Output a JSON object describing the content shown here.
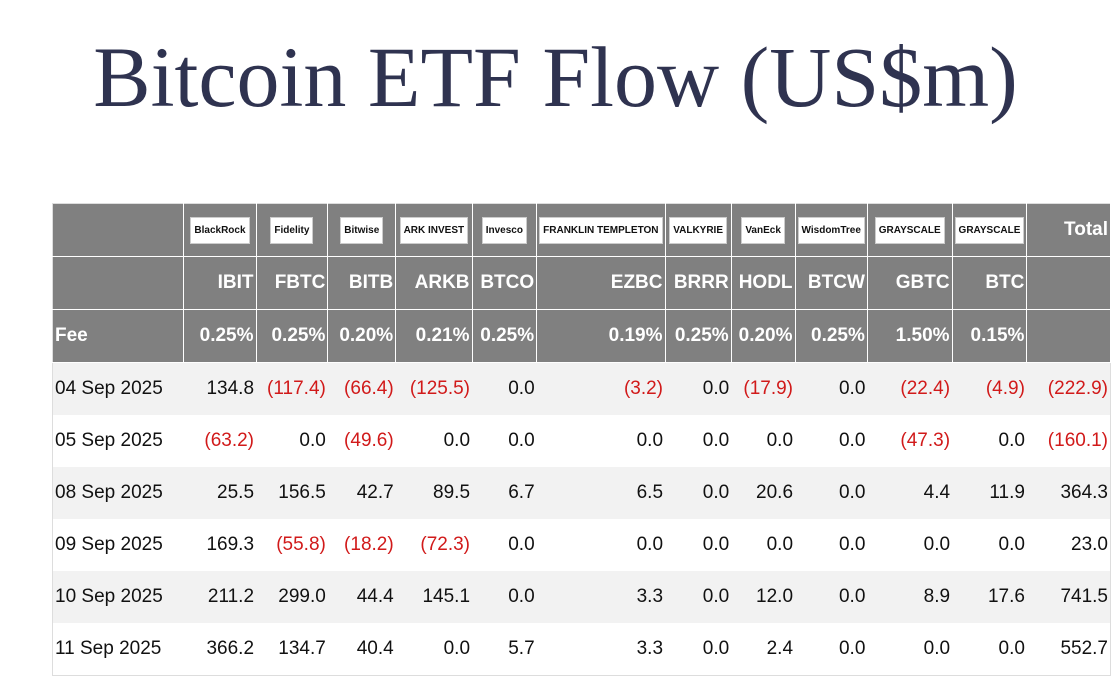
{
  "title": "Bitcoin ETF Flow (US$m)",
  "table": {
    "logos": [
      "BlackRock",
      "Fidelity",
      "Bitwise",
      "ARK INVEST",
      "Invesco",
      "FRANKLIN TEMPLETON",
      "VALKYRIE",
      "VanEck",
      "WisdomTree",
      "GRAYSCALE",
      "GRAYSCALE"
    ],
    "total_label": "Total",
    "tickers": [
      "IBIT",
      "FBTC",
      "BITB",
      "ARKB",
      "BTCO",
      "EZBC",
      "BRRR",
      "HODL",
      "BTCW",
      "GBTC",
      "BTC"
    ],
    "fee_label": "Fee",
    "fees": [
      "0.25%",
      "0.25%",
      "0.20%",
      "0.21%",
      "0.25%",
      "0.19%",
      "0.25%",
      "0.20%",
      "0.25%",
      "1.50%",
      "0.15%"
    ],
    "rows": [
      [
        "04 Sep 2025",
        "134.8",
        "(117.4)",
        "(66.4)",
        "(125.5)",
        "0.0",
        "(3.2)",
        "0.0",
        "(17.9)",
        "0.0",
        "(22.4)",
        "(4.9)",
        "(222.9)"
      ],
      [
        "05 Sep 2025",
        "(63.2)",
        "0.0",
        "(49.6)",
        "0.0",
        "0.0",
        "0.0",
        "0.0",
        "0.0",
        "0.0",
        "(47.3)",
        "0.0",
        "(160.1)"
      ],
      [
        "08 Sep 2025",
        "25.5",
        "156.5",
        "42.7",
        "89.5",
        "6.7",
        "6.5",
        "0.0",
        "20.6",
        "0.0",
        "4.4",
        "11.9",
        "364.3"
      ],
      [
        "09 Sep 2025",
        "169.3",
        "(55.8)",
        "(18.2)",
        "(72.3)",
        "0.0",
        "0.0",
        "0.0",
        "0.0",
        "0.0",
        "0.0",
        "0.0",
        "23.0"
      ],
      [
        "10 Sep 2025",
        "211.2",
        "299.0",
        "44.4",
        "145.1",
        "0.0",
        "3.3",
        "0.0",
        "12.0",
        "0.0",
        "8.9",
        "17.6",
        "741.5"
      ],
      [
        "11 Sep 2025",
        "366.2",
        "134.7",
        "40.4",
        "0.0",
        "5.7",
        "3.3",
        "0.0",
        "2.4",
        "0.0",
        "0.0",
        "0.0",
        "552.7"
      ]
    ]
  }
}
